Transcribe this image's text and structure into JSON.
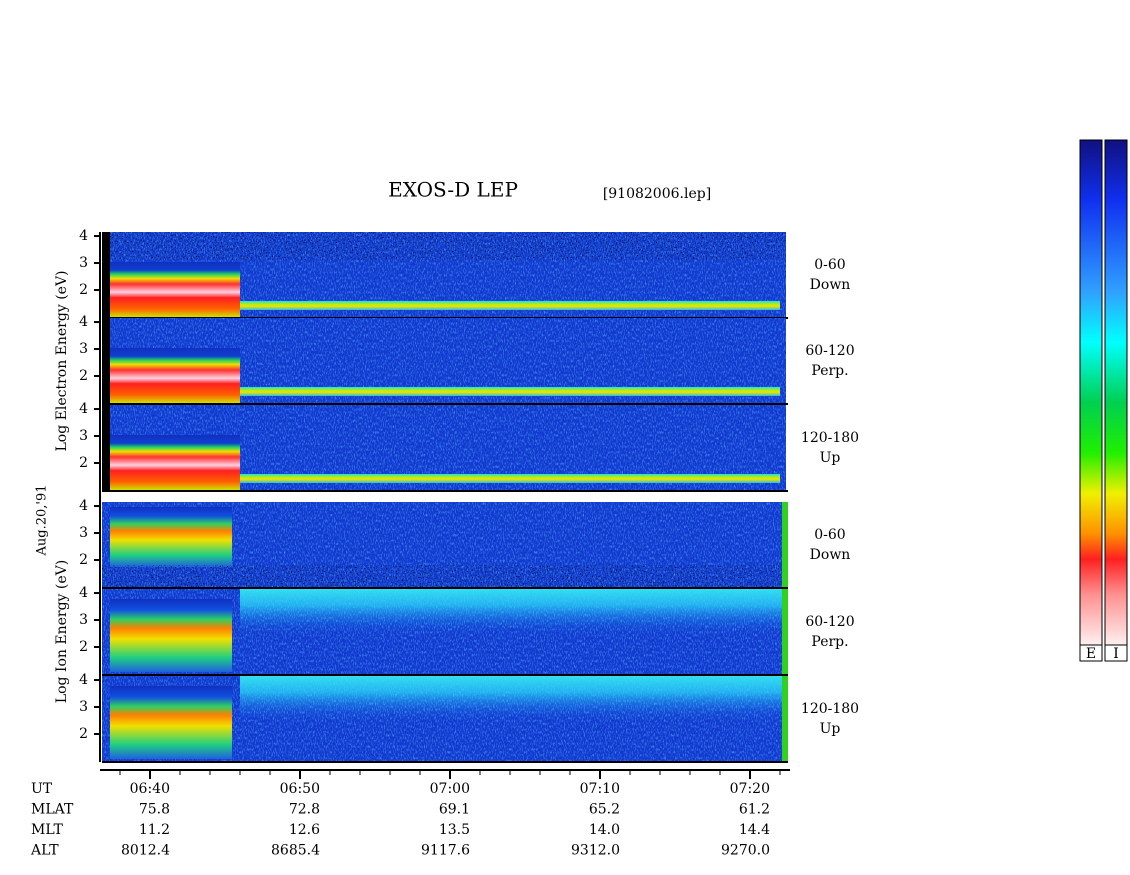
{
  "chart_data": {
    "type": "spectrogram",
    "title": "EXOS-D LEP",
    "file": "[91082006.lep]",
    "date_label": "Aug.20,'91",
    "ylim": [
      1,
      4.15
    ],
    "yticks": [
      2,
      3,
      4
    ],
    "groups": [
      {
        "axis_label": "Log Electron Energy (eV)",
        "kind": "electron",
        "panels": [
          {
            "label": [
              "0-60",
              "Down"
            ]
          },
          {
            "label": [
              "60-120",
              "Perp."
            ]
          },
          {
            "label": [
              "120-180",
              "Up"
            ]
          }
        ]
      },
      {
        "axis_label": "Log Ion Energy (eV)",
        "kind": "ion",
        "panels": [
          {
            "label": [
              "0-60",
              "Down"
            ]
          },
          {
            "label": [
              "60-120",
              "Perp."
            ]
          },
          {
            "label": [
              "120-180",
              "Up"
            ]
          }
        ]
      }
    ],
    "rows": [
      {
        "name": "UT",
        "values": [
          "06:40",
          "06:50",
          "07:00",
          "07:10",
          "07:20"
        ]
      },
      {
        "name": "MLAT",
        "values": [
          "75.8",
          "72.8",
          "69.1",
          "65.2",
          "61.2"
        ]
      },
      {
        "name": "MLT",
        "values": [
          "11.2",
          "12.6",
          "13.5",
          "14.0",
          "14.4"
        ]
      },
      {
        "name": "ALT",
        "values": [
          "8012.4",
          "8685.4",
          "9117.6",
          "9312.0",
          "9270.0"
        ]
      }
    ],
    "colorbars": [
      "E",
      "I"
    ]
  }
}
